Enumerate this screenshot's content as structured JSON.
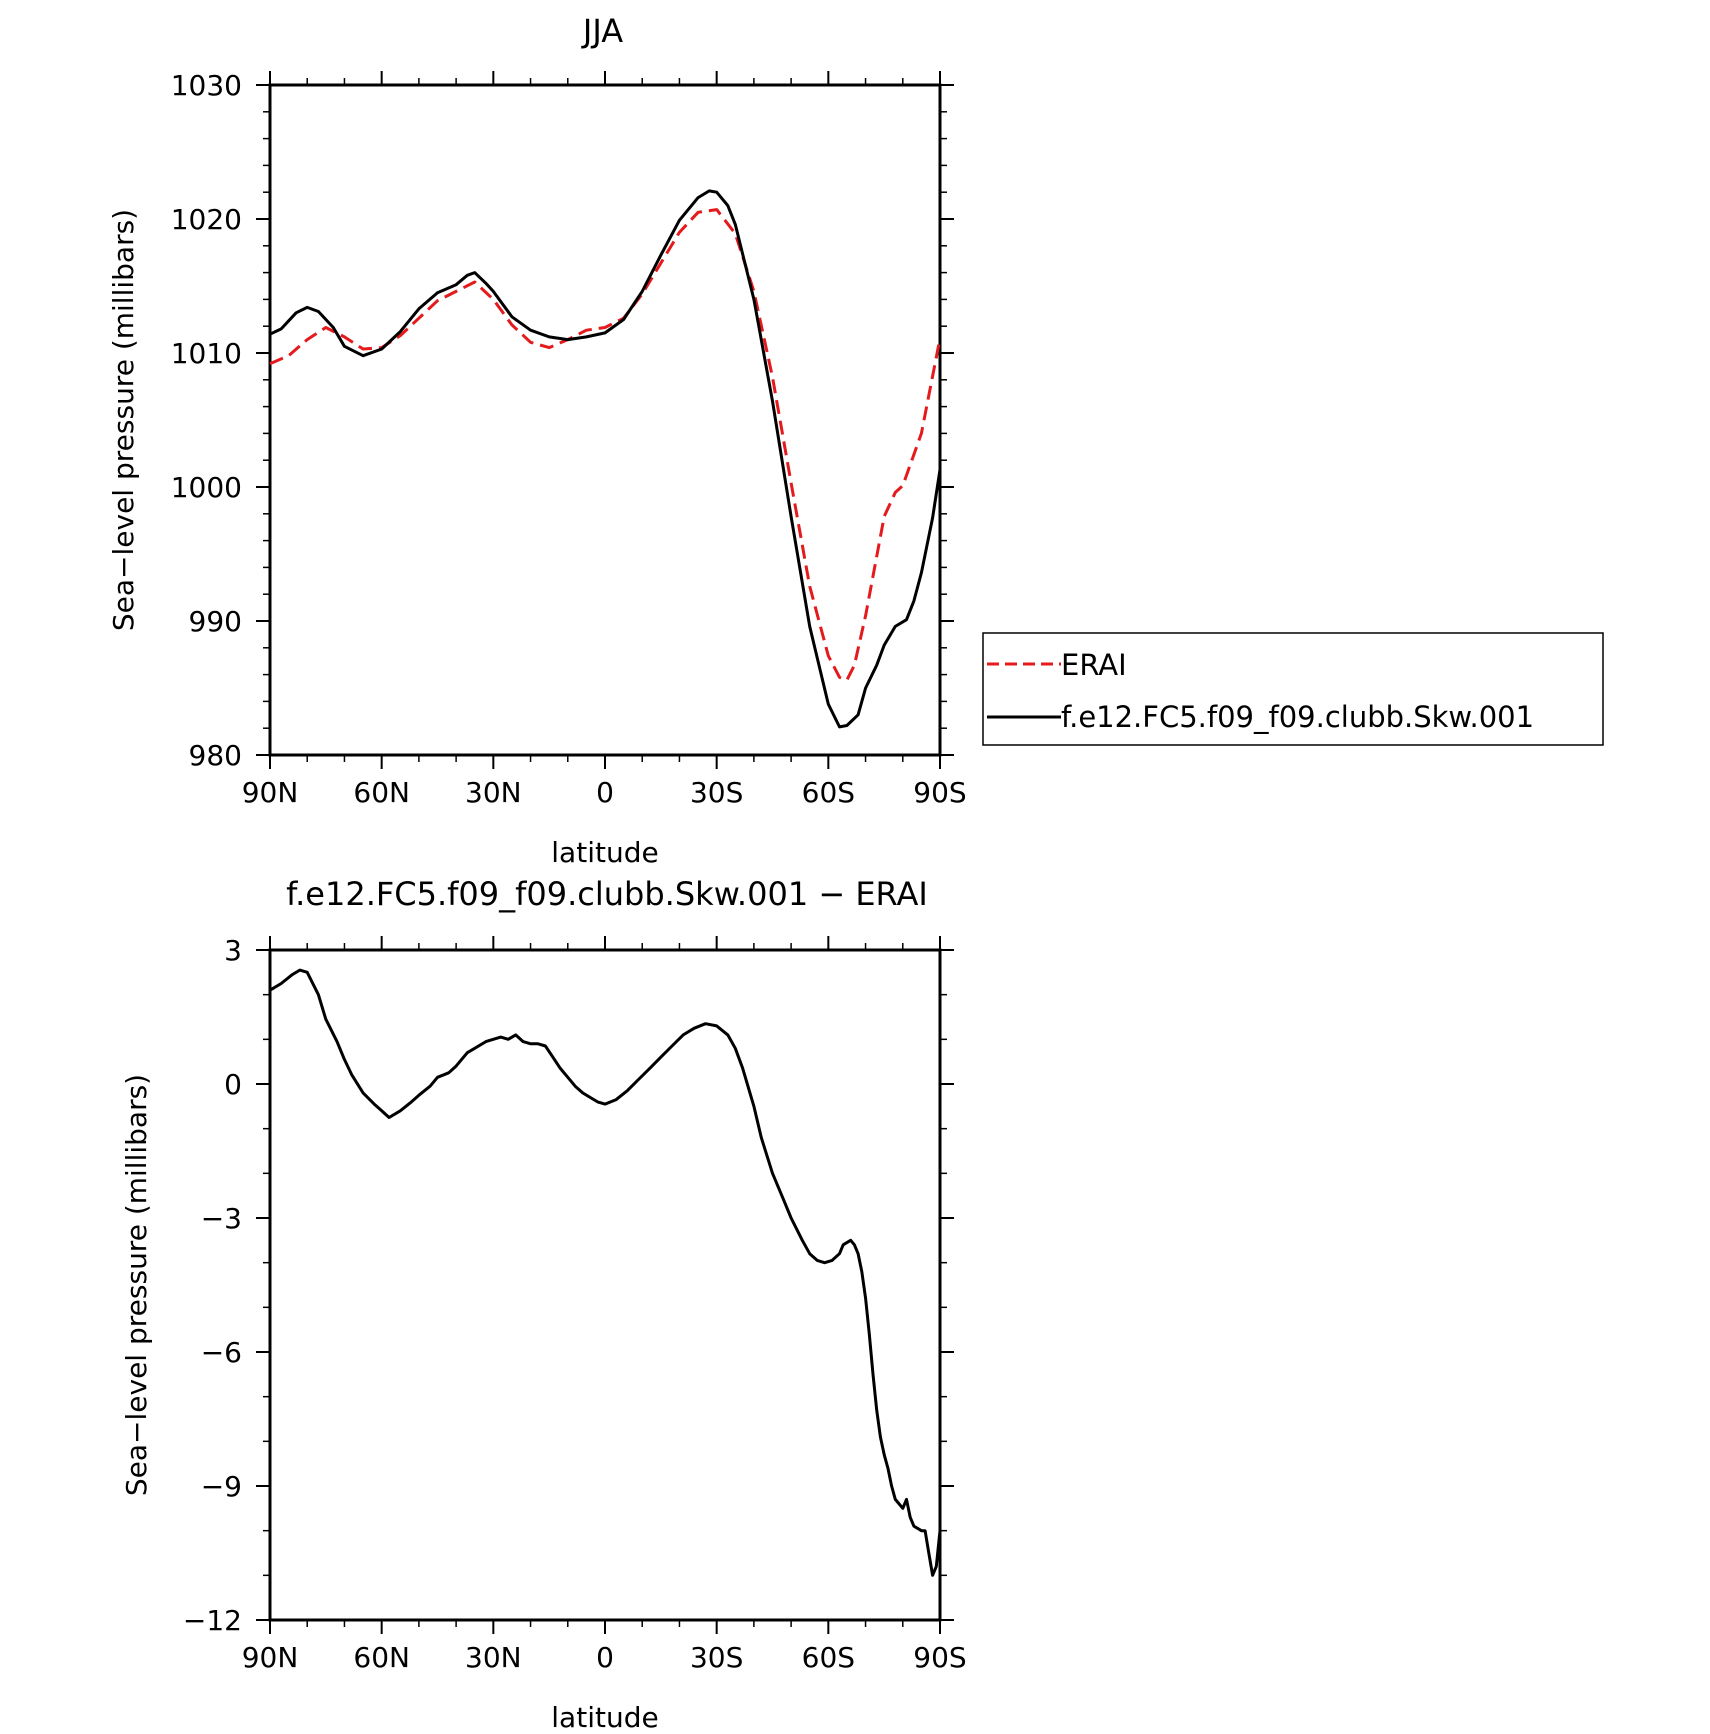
{
  "colors": {
    "erai": "#e41a1c",
    "model": "#000000",
    "axes": "#000000"
  },
  "chart_data": [
    {
      "type": "line",
      "title": "JJA",
      "xlabel": "latitude",
      "ylabel": "Sea−level pressure (millibars)",
      "xlim": [
        90,
        -90
      ],
      "ylim": [
        980,
        1030
      ],
      "x_tick_values": [
        90,
        60,
        30,
        0,
        -30,
        -60,
        -90
      ],
      "x_tick_labels": [
        "90N",
        "60N",
        "30N",
        "0",
        "30S",
        "60S",
        "90S"
      ],
      "y_tick_values": [
        980,
        990,
        1000,
        1010,
        1020,
        1030
      ],
      "y_tick_labels": [
        "980",
        "990",
        "1000",
        "1010",
        "1020",
        "1030"
      ],
      "legend": {
        "placement": "outside-right"
      },
      "series": [
        {
          "name": "ERAI",
          "color": "#e41a1c",
          "dash": "dashed",
          "x": [
            90,
            85,
            80,
            75,
            70,
            65,
            60,
            55,
            50,
            45,
            40,
            35,
            30,
            25,
            20,
            15,
            10,
            5,
            0,
            -5,
            -10,
            -15,
            -20,
            -25,
            -30,
            -35,
            -40,
            -45,
            -50,
            -55,
            -60,
            -63,
            -65,
            -67,
            -70,
            -75,
            -78,
            -80,
            -85,
            -90
          ],
          "y": [
            1009.2,
            1009.8,
            1011.0,
            1011.9,
            1011.2,
            1010.3,
            1010.4,
            1011.3,
            1012.6,
            1013.9,
            1014.6,
            1015.3,
            1014.0,
            1012.1,
            1010.8,
            1010.4,
            1011.0,
            1011.7,
            1011.9,
            1012.6,
            1014.4,
            1016.7,
            1019.0,
            1020.5,
            1020.7,
            1018.9,
            1014.6,
            1008.2,
            1000.3,
            992.6,
            987.4,
            985.8,
            985.6,
            986.7,
            990.4,
            997.8,
            999.6,
            1000.1,
            1004.0,
            1011.1
          ]
        },
        {
          "name": "f.e12.FC5.f09_f09.clubb.Skw.001",
          "color": "#000000",
          "dash": "solid",
          "x": [
            90,
            87,
            83,
            80,
            77,
            73,
            70,
            65,
            60,
            55,
            50,
            45,
            40,
            37,
            35,
            32,
            30,
            25,
            20,
            15,
            10,
            5,
            0,
            -5,
            -10,
            -15,
            -20,
            -25,
            -28,
            -30,
            -33,
            -35,
            -40,
            -45,
            -50,
            -55,
            -60,
            -63,
            -65,
            -68,
            -70,
            -73,
            -75,
            -78,
            -81,
            -83,
            -85,
            -88,
            -90
          ],
          "y": [
            1011.4,
            1011.8,
            1013.0,
            1013.4,
            1013.1,
            1011.9,
            1010.5,
            1009.8,
            1010.3,
            1011.6,
            1013.3,
            1014.5,
            1015.1,
            1015.8,
            1016.0,
            1015.2,
            1014.6,
            1012.7,
            1011.7,
            1011.2,
            1011.0,
            1011.2,
            1011.5,
            1012.5,
            1014.6,
            1017.3,
            1019.9,
            1021.6,
            1022.1,
            1022.0,
            1021.0,
            1019.6,
            1014.0,
            1006.4,
            997.8,
            989.6,
            983.8,
            982.1,
            982.2,
            983.0,
            985.0,
            986.7,
            988.2,
            989.6,
            990.1,
            991.5,
            993.6,
            997.7,
            1001.3
          ]
        }
      ]
    },
    {
      "type": "line",
      "title": "f.e12.FC5.f09_f09.clubb.Skw.001 − ERAI",
      "xlabel": "latitude",
      "ylabel": "Sea−level pressure (millibars)",
      "xlim": [
        90,
        -90
      ],
      "ylim": [
        -12,
        3
      ],
      "x_tick_values": [
        90,
        60,
        30,
        0,
        -30,
        -60,
        -90
      ],
      "x_tick_labels": [
        "90N",
        "60N",
        "30N",
        "0",
        "30S",
        "60S",
        "90S"
      ],
      "y_tick_values": [
        -12,
        -9,
        -6,
        -3,
        0,
        3
      ],
      "y_tick_labels": [
        "−12",
        "−9",
        "−6",
        "−3",
        "0",
        "3"
      ],
      "series": [
        {
          "color": "#000000",
          "dash": "solid",
          "x": [
            90,
            87,
            84,
            82,
            80,
            77,
            75,
            72,
            70,
            68,
            65,
            62,
            60,
            58,
            55,
            52,
            50,
            47,
            45,
            42,
            40,
            37,
            35,
            32,
            30,
            28,
            26,
            24,
            22,
            20,
            18,
            16,
            14,
            12,
            10,
            8,
            6,
            4,
            2,
            0,
            -3,
            -6,
            -9,
            -12,
            -15,
            -18,
            -21,
            -24,
            -27,
            -30,
            -33,
            -35,
            -37,
            -40,
            -42,
            -45,
            -48,
            -50,
            -53,
            -55,
            -57,
            -59,
            -61,
            -63,
            -64,
            -65,
            -66,
            -67,
            -68,
            -69,
            -70,
            -71,
            -72,
            -73,
            -74,
            -75,
            -76,
            -77,
            -78,
            -79,
            -80,
            -81,
            -82,
            -83,
            -84,
            -85,
            -86,
            -87,
            -88,
            -89,
            -90
          ],
          "y": [
            2.1,
            2.25,
            2.45,
            2.55,
            2.5,
            2.0,
            1.45,
            0.95,
            0.55,
            0.2,
            -0.2,
            -0.45,
            -0.6,
            -0.75,
            -0.6,
            -0.4,
            -0.25,
            -0.05,
            0.15,
            0.25,
            0.4,
            0.7,
            0.8,
            0.95,
            1.0,
            1.05,
            1.0,
            1.1,
            0.95,
            0.9,
            0.9,
            0.85,
            0.6,
            0.35,
            0.15,
            -0.05,
            -0.2,
            -0.3,
            -0.4,
            -0.45,
            -0.35,
            -0.15,
            0.1,
            0.35,
            0.6,
            0.85,
            1.1,
            1.25,
            1.35,
            1.3,
            1.1,
            0.8,
            0.35,
            -0.5,
            -1.2,
            -2.0,
            -2.6,
            -3.0,
            -3.5,
            -3.8,
            -3.95,
            -4.0,
            -3.95,
            -3.8,
            -3.6,
            -3.55,
            -3.5,
            -3.6,
            -3.8,
            -4.2,
            -4.8,
            -5.6,
            -6.5,
            -7.3,
            -7.9,
            -8.3,
            -8.6,
            -9.0,
            -9.3,
            -9.4,
            -9.5,
            -9.3,
            -9.7,
            -9.9,
            -9.95,
            -10.0,
            -10.0,
            -10.5,
            -11.0,
            -10.8,
            -10.0
          ]
        }
      ]
    }
  ]
}
